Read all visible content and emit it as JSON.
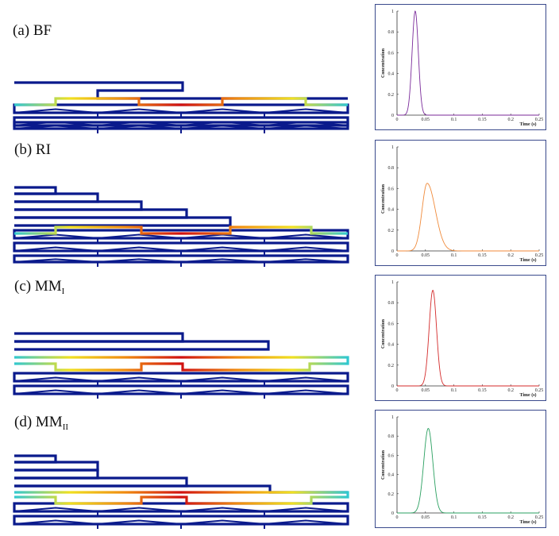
{
  "panels": [
    {
      "id": "a",
      "prefix": "(a) ",
      "name": "BF",
      "sub": ""
    },
    {
      "id": "b",
      "prefix": "(b) ",
      "name": "RI",
      "sub": ""
    },
    {
      "id": "c",
      "prefix": "(c) ",
      "name": "MM",
      "sub": "I"
    },
    {
      "id": "d",
      "prefix": "(d) ",
      "name": "MM",
      "sub": "II"
    }
  ],
  "colors": {
    "network": "#0a1a8c",
    "hot_red": "#d01010",
    "hot_orange": "#f08a10",
    "hot_yellow": "#f0e020",
    "hot_cyan": "#30c8d0",
    "frame": "#3a4a8c"
  },
  "chart_data": [
    {
      "type": "line",
      "panel": "a",
      "xlabel": "Time (s)",
      "ylabel": "Concentration",
      "xlim": [
        0,
        0.25
      ],
      "ylim": [
        0,
        1
      ],
      "xticks": [
        "0",
        "0.05",
        "0.1",
        "0.15",
        "0.2",
        "0.25"
      ],
      "yticks": [
        "0",
        "0.2",
        "0.4",
        "0.6",
        "0.8",
        "1"
      ],
      "series": [
        {
          "name": "BF",
          "color": "#7a2a9a",
          "peak_time": 0.032,
          "peak_value": 1.0,
          "width": 0.0055,
          "skew": 0.0
        }
      ]
    },
    {
      "type": "line",
      "panel": "b",
      "xlabel": "Time (s)",
      "ylabel": "Concentration",
      "xlim": [
        0,
        0.25
      ],
      "ylim": [
        0,
        1
      ],
      "xticks": [
        "0",
        "0.05",
        "0.1",
        "0.15",
        "0.2",
        "0.25"
      ],
      "yticks": [
        "0",
        "0.2",
        "0.4",
        "0.6",
        "0.8",
        "1"
      ],
      "series": [
        {
          "name": "RI",
          "color": "#f08a3a",
          "peak_time": 0.053,
          "peak_value": 0.65,
          "width": 0.009,
          "skew": 0.6
        }
      ]
    },
    {
      "type": "line",
      "panel": "c",
      "xlabel": "Time (s)",
      "ylabel": "Concentration",
      "xlim": [
        0,
        0.25
      ],
      "ylim": [
        0,
        1
      ],
      "xticks": [
        "0",
        "0.05",
        "0.1",
        "0.15",
        "0.2",
        "0.25"
      ],
      "yticks": [
        "0",
        "0.2",
        "0.4",
        "0.6",
        "0.8",
        "1"
      ],
      "series": [
        {
          "name": "MM I",
          "color": "#d42a2a",
          "peak_time": 0.063,
          "peak_value": 0.92,
          "width": 0.0065,
          "skew": 0.0
        }
      ]
    },
    {
      "type": "line",
      "panel": "d",
      "xlabel": "Time (s)",
      "ylabel": "Concentration",
      "xlim": [
        0,
        0.25
      ],
      "ylim": [
        0,
        1
      ],
      "xticks": [
        "0",
        "0.05",
        "0.1",
        "0.15",
        "0.2",
        "0.25"
      ],
      "yticks": [
        "0",
        "0.2",
        "0.4",
        "0.6",
        "0.8",
        "1"
      ],
      "series": [
        {
          "name": "MM II",
          "color": "#2aa060",
          "peak_time": 0.055,
          "peak_value": 0.88,
          "width": 0.008,
          "skew": 0.0
        }
      ]
    }
  ]
}
